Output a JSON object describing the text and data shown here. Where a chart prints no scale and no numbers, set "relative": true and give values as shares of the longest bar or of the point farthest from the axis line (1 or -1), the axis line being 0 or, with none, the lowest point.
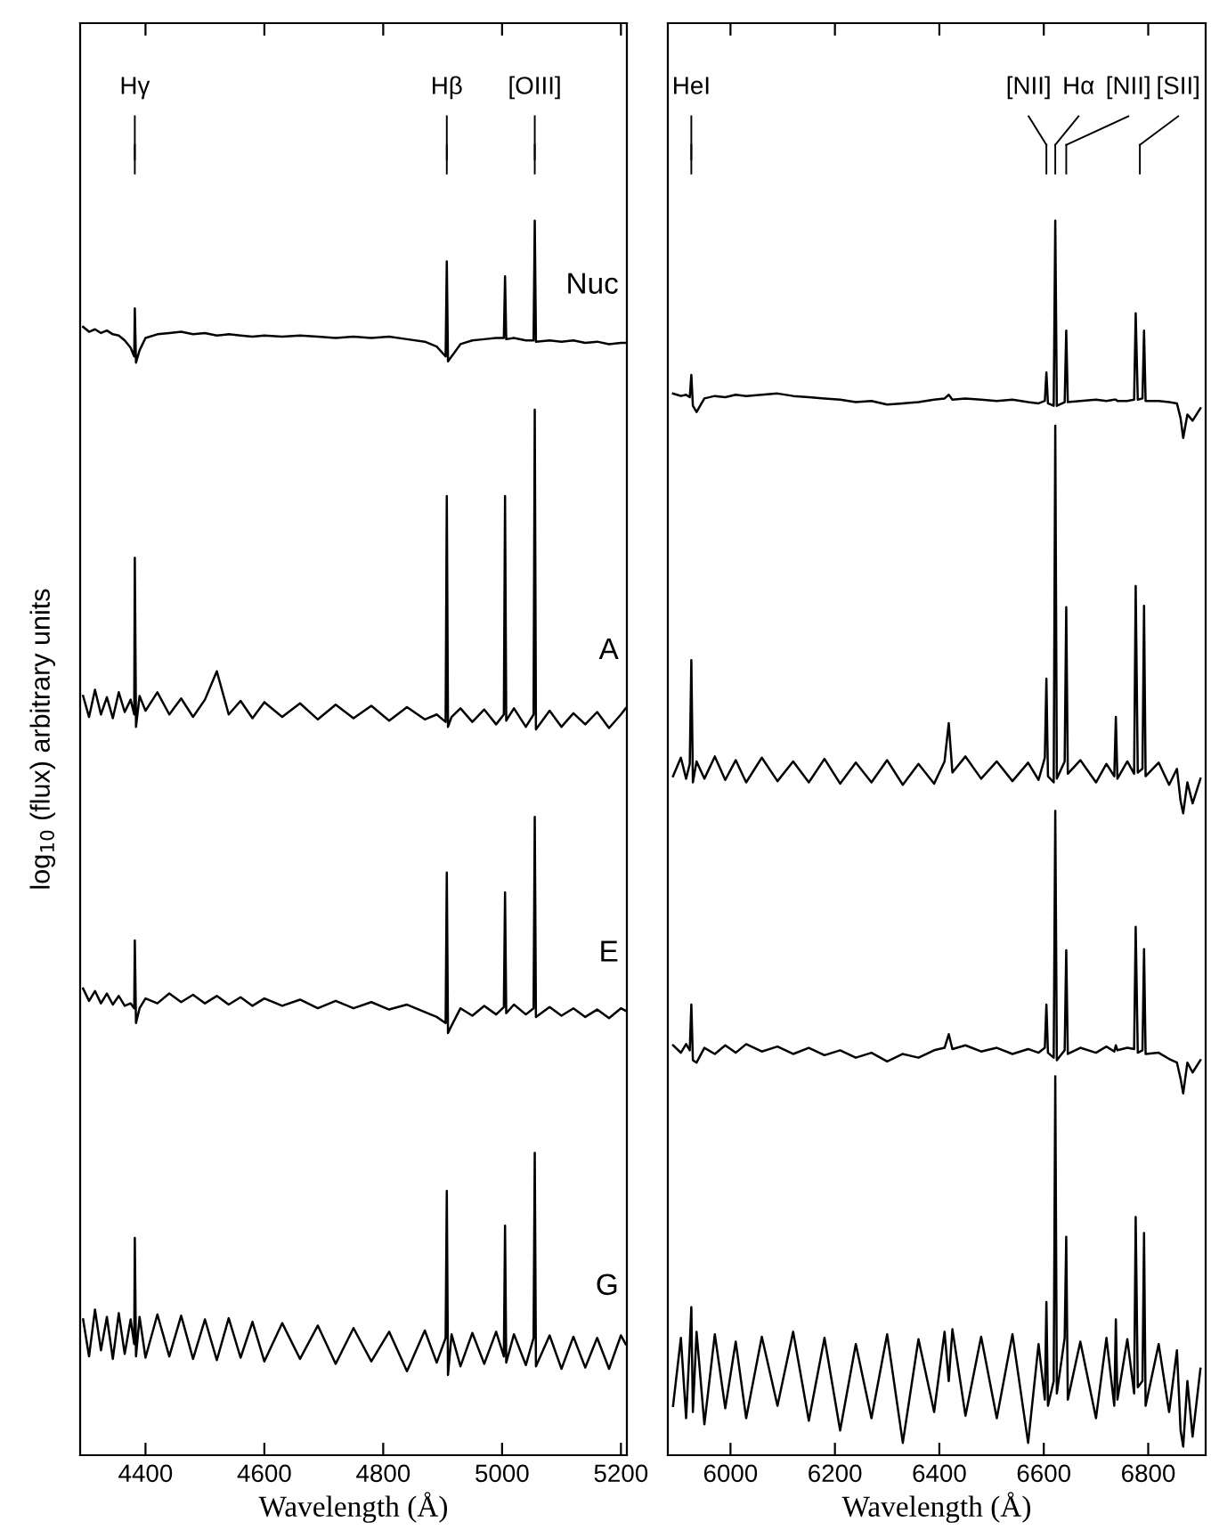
{
  "chart_data": [
    {
      "type": "line",
      "relative": true,
      "xlabel": "Wavelength (Å)",
      "ylabel": "log$_{10}$ (flux) arbitrary units",
      "xlim": [
        4290,
        5210
      ],
      "xticks": [
        4400,
        4600,
        4800,
        5000,
        5200
      ],
      "tick_labels": "x",
      "legend": false,
      "grid": false,
      "marker": "none",
      "line_style": "solid",
      "x": [
        4295,
        4305,
        4315,
        4325,
        4335,
        4345,
        4355,
        4365,
        4375,
        4381,
        4382,
        4384,
        4390,
        4400,
        4420,
        4440,
        4460,
        4480,
        4500,
        4520,
        4540,
        4560,
        4580,
        4600,
        4630,
        4660,
        4690,
        4720,
        4750,
        4780,
        4810,
        4840,
        4870,
        4890,
        4905,
        4907,
        4909,
        4915,
        4930,
        4950,
        4970,
        4990,
        5003,
        5005,
        5007,
        5020,
        5040,
        5053,
        5055,
        5057,
        5080,
        5100,
        5120,
        5140,
        5160,
        5180,
        5200,
        5208
      ],
      "annotations": [
        {
          "text": "Hγ",
          "x": 4382
        },
        {
          "text": "Hβ",
          "x": 4907
        },
        {
          "text": "[OIII]",
          "x": 5055
        }
      ],
      "series": [
        {
          "name": "Nuc",
          "color": "#000000",
          "values": [
            0.914,
            0.91,
            0.912,
            0.909,
            0.911,
            0.908,
            0.907,
            0.903,
            0.897,
            0.89,
            0.929,
            0.885,
            0.895,
            0.905,
            0.908,
            0.909,
            0.91,
            0.908,
            0.909,
            0.907,
            0.908,
            0.907,
            0.906,
            0.907,
            0.906,
            0.907,
            0.906,
            0.905,
            0.906,
            0.905,
            0.906,
            0.904,
            0.902,
            0.898,
            0.89,
            0.967,
            0.886,
            0.89,
            0.9,
            0.903,
            0.904,
            0.905,
            0.905,
            0.955,
            0.904,
            0.905,
            0.903,
            0.903,
            1.0,
            0.902,
            0.903,
            0.902,
            0.903,
            0.901,
            0.902,
            0.9,
            0.901,
            0.901
          ]
        },
        {
          "name": "A",
          "color": "#000000",
          "values": [
            0.615,
            0.598,
            0.62,
            0.6,
            0.614,
            0.597,
            0.618,
            0.602,
            0.612,
            0.6,
            0.727,
            0.59,
            0.615,
            0.603,
            0.618,
            0.6,
            0.613,
            0.598,
            0.612,
            0.635,
            0.6,
            0.611,
            0.597,
            0.61,
            0.598,
            0.609,
            0.596,
            0.608,
            0.597,
            0.607,
            0.595,
            0.606,
            0.596,
            0.6,
            0.594,
            0.777,
            0.59,
            0.598,
            0.605,
            0.594,
            0.604,
            0.592,
            0.6,
            0.777,
            0.595,
            0.605,
            0.59,
            0.6,
            0.847,
            0.588,
            0.603,
            0.59,
            0.601,
            0.592,
            0.602,
            0.589,
            0.6,
            0.605
          ]
        },
        {
          "name": "E",
          "color": "#000000",
          "values": [
            0.378,
            0.368,
            0.376,
            0.366,
            0.374,
            0.365,
            0.372,
            0.364,
            0.366,
            0.362,
            0.417,
            0.35,
            0.362,
            0.37,
            0.366,
            0.374,
            0.367,
            0.373,
            0.366,
            0.372,
            0.365,
            0.371,
            0.364,
            0.37,
            0.364,
            0.369,
            0.362,
            0.368,
            0.362,
            0.367,
            0.361,
            0.365,
            0.359,
            0.355,
            0.35,
            0.472,
            0.342,
            0.348,
            0.362,
            0.356,
            0.364,
            0.357,
            0.363,
            0.456,
            0.358,
            0.365,
            0.357,
            0.362,
            0.517,
            0.355,
            0.363,
            0.356,
            0.362,
            0.355,
            0.361,
            0.354,
            0.362,
            0.36
          ]
        },
        {
          "name": "G",
          "color": "#000000",
          "values": [
            0.11,
            0.08,
            0.118,
            0.085,
            0.112,
            0.078,
            0.115,
            0.082,
            0.11,
            0.09,
            0.176,
            0.08,
            0.112,
            0.079,
            0.114,
            0.08,
            0.113,
            0.078,
            0.11,
            0.077,
            0.111,
            0.079,
            0.108,
            0.076,
            0.107,
            0.078,
            0.105,
            0.074,
            0.103,
            0.076,
            0.1,
            0.068,
            0.101,
            0.075,
            0.095,
            0.214,
            0.065,
            0.098,
            0.072,
            0.099,
            0.074,
            0.1,
            0.08,
            0.186,
            0.075,
            0.098,
            0.073,
            0.095,
            0.245,
            0.072,
            0.097,
            0.07,
            0.096,
            0.071,
            0.095,
            0.07,
            0.097,
            0.09
          ]
        }
      ]
    },
    {
      "type": "line",
      "relative": true,
      "xlabel": "Wavelength (Å)",
      "xlim": [
        5880,
        6910
      ],
      "xticks": [
        6000,
        6200,
        6400,
        6600,
        6800
      ],
      "tick_labels": "x",
      "legend": false,
      "grid": false,
      "marker": "none",
      "line_style": "solid",
      "x": [
        5890,
        5905,
        5915,
        5922,
        5925,
        5928,
        5935,
        5950,
        5970,
        5990,
        6010,
        6030,
        6060,
        6090,
        6120,
        6150,
        6180,
        6210,
        6240,
        6270,
        6300,
        6330,
        6360,
        6390,
        6410,
        6418,
        6425,
        6450,
        6480,
        6510,
        6540,
        6570,
        6590,
        6602,
        6605,
        6608,
        6619,
        6622,
        6625,
        6640,
        6643,
        6646,
        6670,
        6700,
        6720,
        6735,
        6738,
        6741,
        6760,
        6773,
        6776,
        6780,
        6789,
        6792,
        6795,
        6820,
        6840,
        6855,
        6862,
        6867,
        6875,
        6885,
        6900
      ],
      "annotations": [
        {
          "text": "HeI",
          "x": 5925
        },
        {
          "text": "[NII]",
          "x": 6605
        },
        {
          "text": "Hα",
          "x": 6622
        },
        {
          "text": "[NII]",
          "x": 6643
        },
        {
          "text": "[SII]",
          "x": 6784
        }
      ],
      "series": [
        {
          "color": "#000000",
          "values": [
            0.86,
            0.858,
            0.859,
            0.857,
            0.875,
            0.85,
            0.845,
            0.856,
            0.858,
            0.857,
            0.859,
            0.858,
            0.859,
            0.86,
            0.858,
            0.857,
            0.856,
            0.855,
            0.853,
            0.854,
            0.851,
            0.852,
            0.853,
            0.855,
            0.856,
            0.859,
            0.855,
            0.856,
            0.855,
            0.854,
            0.855,
            0.853,
            0.852,
            0.854,
            0.877,
            0.852,
            0.85,
            1.0,
            0.85,
            0.853,
            0.911,
            0.853,
            0.854,
            0.855,
            0.854,
            0.855,
            0.855,
            0.854,
            0.854,
            0.855,
            0.925,
            0.855,
            0.856,
            0.911,
            0.854,
            0.854,
            0.853,
            0.852,
            0.84,
            0.824,
            0.843,
            0.838,
            0.848
          ]
        },
        {
          "color": "#000000",
          "values": [
            0.55,
            0.565,
            0.548,
            0.56,
            0.644,
            0.545,
            0.562,
            0.548,
            0.566,
            0.547,
            0.563,
            0.545,
            0.565,
            0.546,
            0.562,
            0.545,
            0.564,
            0.544,
            0.561,
            0.545,
            0.563,
            0.543,
            0.56,
            0.544,
            0.562,
            0.593,
            0.553,
            0.566,
            0.548,
            0.562,
            0.546,
            0.561,
            0.547,
            0.565,
            0.629,
            0.55,
            0.545,
            0.834,
            0.548,
            0.562,
            0.687,
            0.552,
            0.563,
            0.545,
            0.56,
            0.55,
            0.598,
            0.548,
            0.562,
            0.552,
            0.704,
            0.553,
            0.556,
            0.688,
            0.55,
            0.561,
            0.543,
            0.556,
            0.53,
            0.52,
            0.545,
            0.528,
            0.548
          ]
        },
        {
          "color": "#000000",
          "values": [
            0.332,
            0.326,
            0.333,
            0.328,
            0.365,
            0.32,
            0.318,
            0.33,
            0.325,
            0.332,
            0.326,
            0.333,
            0.327,
            0.331,
            0.325,
            0.33,
            0.324,
            0.328,
            0.322,
            0.326,
            0.319,
            0.325,
            0.322,
            0.328,
            0.33,
            0.341,
            0.329,
            0.332,
            0.327,
            0.33,
            0.325,
            0.329,
            0.326,
            0.33,
            0.365,
            0.326,
            0.322,
            0.522,
            0.32,
            0.328,
            0.409,
            0.325,
            0.33,
            0.326,
            0.331,
            0.327,
            0.332,
            0.328,
            0.33,
            0.329,
            0.428,
            0.326,
            0.328,
            0.41,
            0.325,
            0.326,
            0.321,
            0.318,
            0.305,
            0.293,
            0.318,
            0.31,
            0.32
          ]
        },
        {
          "color": "#000000",
          "values": [
            0.04,
            0.095,
            0.03,
            0.09,
            0.12,
            0.035,
            0.1,
            0.025,
            0.098,
            0.038,
            0.092,
            0.03,
            0.096,
            0.04,
            0.1,
            0.028,
            0.095,
            0.02,
            0.09,
            0.03,
            0.098,
            0.01,
            0.094,
            0.035,
            0.1,
            0.06,
            0.102,
            0.032,
            0.096,
            0.03,
            0.098,
            0.01,
            0.09,
            0.045,
            0.124,
            0.04,
            0.06,
            0.307,
            0.05,
            0.095,
            0.177,
            0.045,
            0.092,
            0.03,
            0.095,
            0.04,
            0.11,
            0.045,
            0.094,
            0.05,
            0.193,
            0.055,
            0.06,
            0.18,
            0.04,
            0.09,
            0.035,
            0.085,
            0.02,
            0.007,
            0.06,
            0.015,
            0.07
          ]
        }
      ]
    }
  ]
}
